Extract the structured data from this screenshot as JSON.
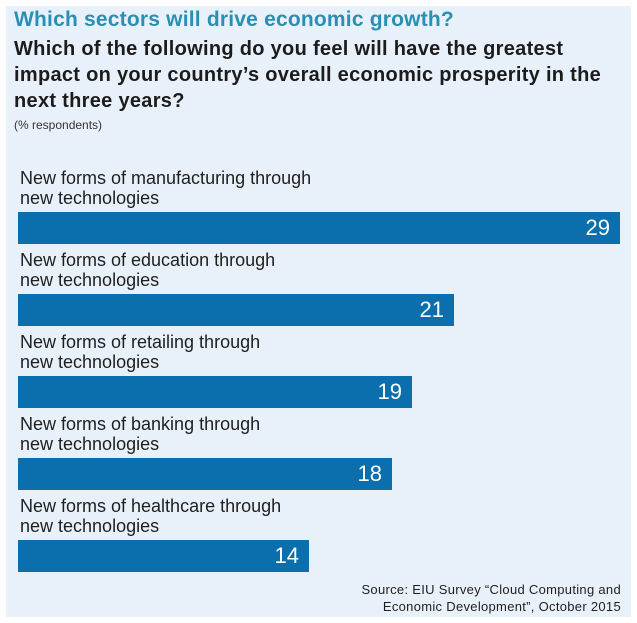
{
  "chart_data": {
    "type": "bar",
    "orientation": "horizontal",
    "title": "Which sectors will drive economic growth?",
    "subtitle": "Which of the following do you feel will have the greatest impact on your country’s overall economic prosperity in the next three years?",
    "unit": "(% respondents)",
    "categories": [
      "New forms of manufacturing through new technologies",
      "New forms of education through new technologies",
      "New forms of retailing through new technologies",
      "New forms of banking through new technologies",
      "New forms of healthcare through new technologies"
    ],
    "category_lines": [
      [
        "New forms of manufacturing through",
        "new technologies"
      ],
      [
        "New forms of education through",
        "new technologies"
      ],
      [
        "New forms of retailing through",
        "new technologies"
      ],
      [
        "New forms of banking through",
        "new technologies"
      ],
      [
        "New forms of healthcare through",
        "new technologies"
      ]
    ],
    "values": [
      29,
      21,
      19,
      18,
      14
    ],
    "xlim": [
      0,
      29
    ],
    "grid": false,
    "bar_color": "#0b6fae",
    "source_lines": [
      "Source: EIU Survey “Cloud Computing and",
      "Economic Development”, October 2015"
    ]
  },
  "colors": {
    "title": "#2a8fb3",
    "panel_background": "#e8f1f9",
    "bar": "#0b6fae",
    "value_label": "#ffffff"
  }
}
